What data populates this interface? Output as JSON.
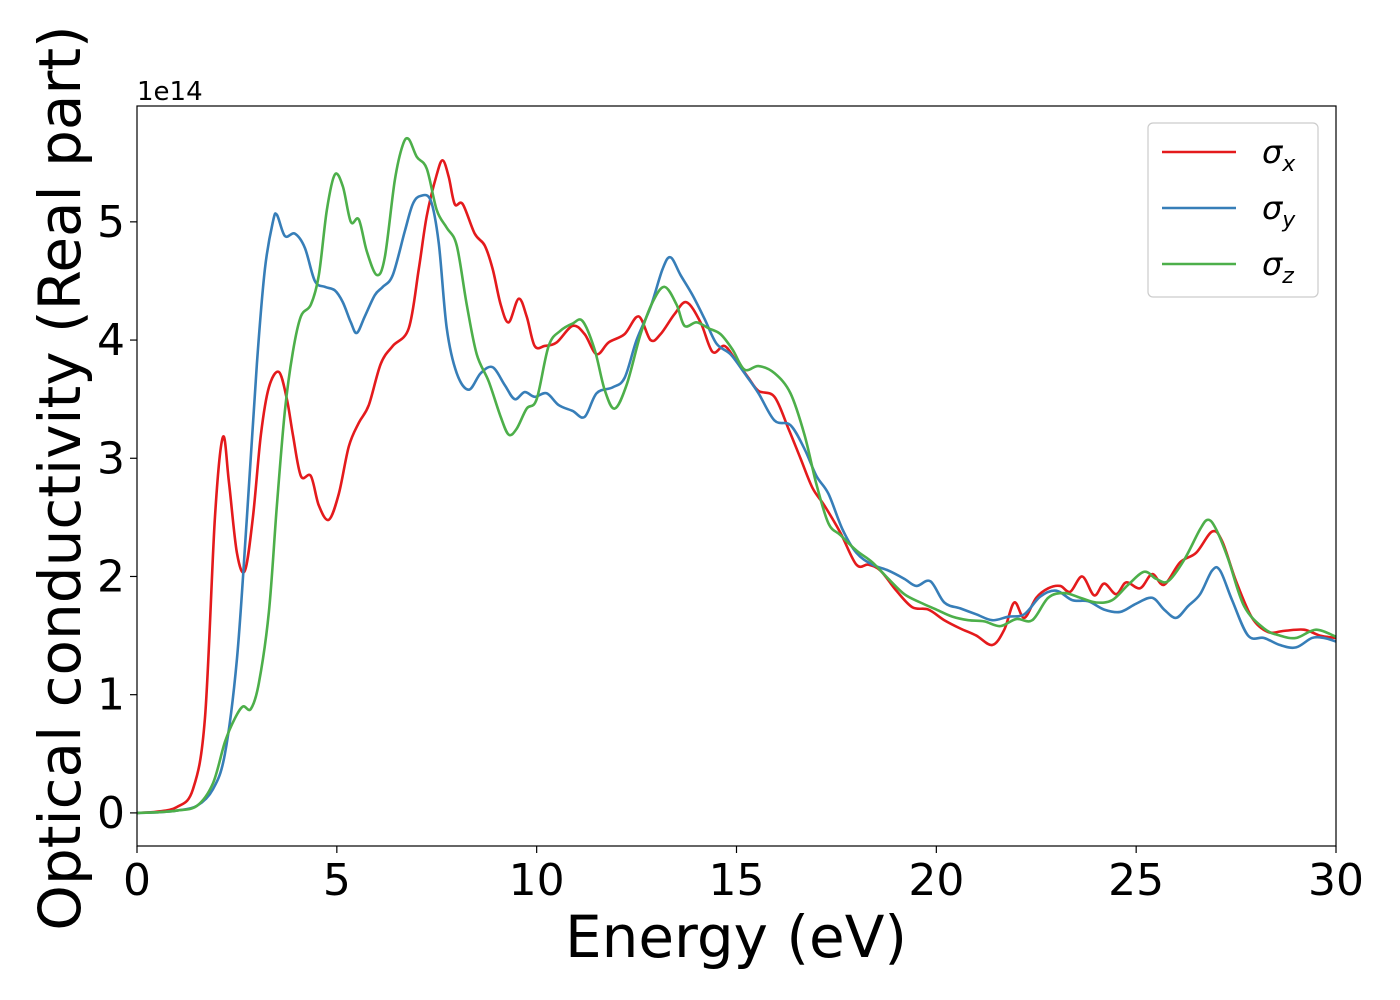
{
  "chart_data": {
    "type": "line",
    "xlabel": "Energy (eV)",
    "ylabel": "Optical conductivity (Real part)",
    "offset_text": "1e14",
    "scale": 100000000000000.0,
    "xlim": [
      0,
      30
    ],
    "ylim": [
      -0.28,
      5.98
    ],
    "x_ticks": [
      0,
      5,
      10,
      15,
      20,
      25,
      30
    ],
    "y_ticks": [
      0,
      1,
      2,
      3,
      4,
      5
    ],
    "grid": false,
    "legend_position": "top-right",
    "series": [
      {
        "name": "σx",
        "color": "#e41a1c",
        "points": [
          [
            0,
            0
          ],
          [
            0.5,
            0.01
          ],
          [
            1,
            0.05
          ],
          [
            1.4,
            0.2
          ],
          [
            1.7,
            0.8
          ],
          [
            1.95,
            2.5
          ],
          [
            2.15,
            3.18
          ],
          [
            2.3,
            2.8
          ],
          [
            2.5,
            2.2
          ],
          [
            2.7,
            2.05
          ],
          [
            2.9,
            2.5
          ],
          [
            3.1,
            3.2
          ],
          [
            3.3,
            3.6
          ],
          [
            3.55,
            3.73
          ],
          [
            3.75,
            3.5
          ],
          [
            3.9,
            3.2
          ],
          [
            4.1,
            2.85
          ],
          [
            4.35,
            2.85
          ],
          [
            4.55,
            2.6
          ],
          [
            4.8,
            2.48
          ],
          [
            5.05,
            2.7
          ],
          [
            5.3,
            3.1
          ],
          [
            5.55,
            3.3
          ],
          [
            5.8,
            3.45
          ],
          [
            6.1,
            3.8
          ],
          [
            6.4,
            3.95
          ],
          [
            6.8,
            4.1
          ],
          [
            7.05,
            4.6
          ],
          [
            7.25,
            5.05
          ],
          [
            7.5,
            5.4
          ],
          [
            7.65,
            5.52
          ],
          [
            7.8,
            5.38
          ],
          [
            7.95,
            5.15
          ],
          [
            8.15,
            5.15
          ],
          [
            8.45,
            4.9
          ],
          [
            8.7,
            4.8
          ],
          [
            8.9,
            4.6
          ],
          [
            9.1,
            4.3
          ],
          [
            9.3,
            4.15
          ],
          [
            9.55,
            4.35
          ],
          [
            9.75,
            4.2
          ],
          [
            9.95,
            3.95
          ],
          [
            10.2,
            3.95
          ],
          [
            10.5,
            3.98
          ],
          [
            10.9,
            4.12
          ],
          [
            11.2,
            4.05
          ],
          [
            11.5,
            3.88
          ],
          [
            11.8,
            3.98
          ],
          [
            12.2,
            4.05
          ],
          [
            12.55,
            4.2
          ],
          [
            12.85,
            4.0
          ],
          [
            13.1,
            4.05
          ],
          [
            13.45,
            4.22
          ],
          [
            13.75,
            4.32
          ],
          [
            14.1,
            4.15
          ],
          [
            14.4,
            3.9
          ],
          [
            14.7,
            3.95
          ],
          [
            15.0,
            3.82
          ],
          [
            15.3,
            3.68
          ],
          [
            15.55,
            3.57
          ],
          [
            15.95,
            3.52
          ],
          [
            16.3,
            3.25
          ],
          [
            16.6,
            3.0
          ],
          [
            16.9,
            2.75
          ],
          [
            17.2,
            2.6
          ],
          [
            17.6,
            2.37
          ],
          [
            18.0,
            2.1
          ],
          [
            18.3,
            2.1
          ],
          [
            18.6,
            2.05
          ],
          [
            19.0,
            1.88
          ],
          [
            19.4,
            1.74
          ],
          [
            19.8,
            1.72
          ],
          [
            20.2,
            1.63
          ],
          [
            20.6,
            1.56
          ],
          [
            21.0,
            1.5
          ],
          [
            21.4,
            1.42
          ],
          [
            21.7,
            1.55
          ],
          [
            21.95,
            1.78
          ],
          [
            22.2,
            1.65
          ],
          [
            22.5,
            1.82
          ],
          [
            22.8,
            1.9
          ],
          [
            23.1,
            1.92
          ],
          [
            23.35,
            1.87
          ],
          [
            23.65,
            2.0
          ],
          [
            23.95,
            1.84
          ],
          [
            24.2,
            1.94
          ],
          [
            24.5,
            1.85
          ],
          [
            24.75,
            1.95
          ],
          [
            25.1,
            1.9
          ],
          [
            25.4,
            2.02
          ],
          [
            25.7,
            1.93
          ],
          [
            26.1,
            2.12
          ],
          [
            26.5,
            2.2
          ],
          [
            26.9,
            2.38
          ],
          [
            27.15,
            2.3
          ],
          [
            27.5,
            1.96
          ],
          [
            27.9,
            1.65
          ],
          [
            28.3,
            1.53
          ],
          [
            28.7,
            1.54
          ],
          [
            29.2,
            1.55
          ],
          [
            29.6,
            1.5
          ],
          [
            30,
            1.48
          ]
        ]
      },
      {
        "name": "σy",
        "color": "#377eb8",
        "points": [
          [
            0,
            0
          ],
          [
            0.5,
            0.005
          ],
          [
            1,
            0.02
          ],
          [
            1.5,
            0.06
          ],
          [
            1.9,
            0.2
          ],
          [
            2.2,
            0.5
          ],
          [
            2.5,
            1.3
          ],
          [
            2.75,
            2.5
          ],
          [
            3.0,
            3.8
          ],
          [
            3.2,
            4.6
          ],
          [
            3.4,
            5.0
          ],
          [
            3.5,
            5.06
          ],
          [
            3.7,
            4.88
          ],
          [
            3.95,
            4.9
          ],
          [
            4.2,
            4.78
          ],
          [
            4.45,
            4.5
          ],
          [
            4.7,
            4.45
          ],
          [
            4.95,
            4.42
          ],
          [
            5.15,
            4.32
          ],
          [
            5.35,
            4.15
          ],
          [
            5.5,
            4.06
          ],
          [
            5.7,
            4.2
          ],
          [
            5.95,
            4.38
          ],
          [
            6.15,
            4.45
          ],
          [
            6.4,
            4.55
          ],
          [
            6.7,
            4.92
          ],
          [
            6.9,
            5.15
          ],
          [
            7.1,
            5.22
          ],
          [
            7.35,
            5.18
          ],
          [
            7.55,
            4.82
          ],
          [
            7.75,
            4.1
          ],
          [
            8.0,
            3.72
          ],
          [
            8.3,
            3.58
          ],
          [
            8.6,
            3.72
          ],
          [
            8.9,
            3.77
          ],
          [
            9.2,
            3.62
          ],
          [
            9.45,
            3.5
          ],
          [
            9.7,
            3.56
          ],
          [
            9.95,
            3.52
          ],
          [
            10.25,
            3.55
          ],
          [
            10.55,
            3.45
          ],
          [
            10.9,
            3.4
          ],
          [
            11.2,
            3.35
          ],
          [
            11.5,
            3.55
          ],
          [
            11.9,
            3.6
          ],
          [
            12.2,
            3.68
          ],
          [
            12.5,
            4.0
          ],
          [
            12.85,
            4.28
          ],
          [
            13.15,
            4.6
          ],
          [
            13.35,
            4.7
          ],
          [
            13.6,
            4.55
          ],
          [
            13.9,
            4.38
          ],
          [
            14.2,
            4.18
          ],
          [
            14.5,
            3.97
          ],
          [
            14.85,
            3.88
          ],
          [
            15.2,
            3.72
          ],
          [
            15.55,
            3.55
          ],
          [
            15.95,
            3.32
          ],
          [
            16.35,
            3.28
          ],
          [
            16.7,
            3.08
          ],
          [
            17.0,
            2.85
          ],
          [
            17.3,
            2.7
          ],
          [
            17.65,
            2.4
          ],
          [
            18.0,
            2.2
          ],
          [
            18.4,
            2.1
          ],
          [
            18.8,
            2.05
          ],
          [
            19.2,
            1.98
          ],
          [
            19.5,
            1.92
          ],
          [
            19.85,
            1.96
          ],
          [
            20.2,
            1.78
          ],
          [
            20.6,
            1.73
          ],
          [
            21.0,
            1.68
          ],
          [
            21.4,
            1.63
          ],
          [
            21.8,
            1.66
          ],
          [
            22.2,
            1.68
          ],
          [
            22.6,
            1.83
          ],
          [
            23.0,
            1.88
          ],
          [
            23.4,
            1.8
          ],
          [
            23.8,
            1.79
          ],
          [
            24.2,
            1.72
          ],
          [
            24.6,
            1.7
          ],
          [
            25.0,
            1.77
          ],
          [
            25.4,
            1.82
          ],
          [
            25.7,
            1.72
          ],
          [
            26.0,
            1.65
          ],
          [
            26.3,
            1.75
          ],
          [
            26.6,
            1.85
          ],
          [
            26.9,
            2.05
          ],
          [
            27.1,
            2.05
          ],
          [
            27.4,
            1.8
          ],
          [
            27.8,
            1.5
          ],
          [
            28.2,
            1.48
          ],
          [
            28.6,
            1.42
          ],
          [
            29.0,
            1.4
          ],
          [
            29.4,
            1.48
          ],
          [
            29.7,
            1.48
          ],
          [
            30,
            1.45
          ]
        ]
      },
      {
        "name": "σz",
        "color": "#4daf4a",
        "points": [
          [
            0,
            0
          ],
          [
            0.5,
            0.005
          ],
          [
            1,
            0.02
          ],
          [
            1.5,
            0.06
          ],
          [
            1.9,
            0.25
          ],
          [
            2.2,
            0.6
          ],
          [
            2.45,
            0.8
          ],
          [
            2.65,
            0.9
          ],
          [
            2.85,
            0.88
          ],
          [
            3.05,
            1.1
          ],
          [
            3.3,
            1.7
          ],
          [
            3.5,
            2.6
          ],
          [
            3.7,
            3.4
          ],
          [
            3.9,
            3.9
          ],
          [
            4.1,
            4.2
          ],
          [
            4.35,
            4.3
          ],
          [
            4.55,
            4.55
          ],
          [
            4.75,
            5.1
          ],
          [
            4.95,
            5.4
          ],
          [
            5.15,
            5.3
          ],
          [
            5.35,
            5.0
          ],
          [
            5.55,
            5.02
          ],
          [
            5.75,
            4.75
          ],
          [
            6.0,
            4.55
          ],
          [
            6.2,
            4.7
          ],
          [
            6.45,
            5.35
          ],
          [
            6.65,
            5.65
          ],
          [
            6.8,
            5.7
          ],
          [
            7.0,
            5.55
          ],
          [
            7.25,
            5.45
          ],
          [
            7.5,
            5.1
          ],
          [
            7.75,
            4.95
          ],
          [
            8.0,
            4.8
          ],
          [
            8.25,
            4.3
          ],
          [
            8.5,
            3.88
          ],
          [
            8.8,
            3.65
          ],
          [
            9.1,
            3.35
          ],
          [
            9.3,
            3.2
          ],
          [
            9.5,
            3.25
          ],
          [
            9.75,
            3.42
          ],
          [
            10.0,
            3.5
          ],
          [
            10.3,
            3.95
          ],
          [
            10.6,
            4.08
          ],
          [
            10.9,
            4.14
          ],
          [
            11.15,
            4.16
          ],
          [
            11.45,
            3.92
          ],
          [
            11.7,
            3.58
          ],
          [
            11.95,
            3.42
          ],
          [
            12.25,
            3.62
          ],
          [
            12.6,
            4.05
          ],
          [
            12.9,
            4.32
          ],
          [
            13.2,
            4.45
          ],
          [
            13.5,
            4.3
          ],
          [
            13.7,
            4.12
          ],
          [
            14.0,
            4.15
          ],
          [
            14.3,
            4.1
          ],
          [
            14.6,
            4.05
          ],
          [
            14.9,
            3.92
          ],
          [
            15.2,
            3.75
          ],
          [
            15.55,
            3.78
          ],
          [
            15.95,
            3.72
          ],
          [
            16.35,
            3.55
          ],
          [
            16.7,
            3.2
          ],
          [
            17.0,
            2.78
          ],
          [
            17.3,
            2.45
          ],
          [
            17.6,
            2.35
          ],
          [
            18.0,
            2.22
          ],
          [
            18.4,
            2.12
          ],
          [
            18.8,
            1.98
          ],
          [
            19.2,
            1.85
          ],
          [
            19.6,
            1.78
          ],
          [
            20.0,
            1.72
          ],
          [
            20.4,
            1.66
          ],
          [
            20.8,
            1.63
          ],
          [
            21.2,
            1.62
          ],
          [
            21.6,
            1.58
          ],
          [
            22.0,
            1.64
          ],
          [
            22.4,
            1.63
          ],
          [
            22.8,
            1.82
          ],
          [
            23.2,
            1.86
          ],
          [
            23.6,
            1.82
          ],
          [
            24.0,
            1.78
          ],
          [
            24.4,
            1.8
          ],
          [
            24.8,
            1.93
          ],
          [
            25.2,
            2.04
          ],
          [
            25.5,
            1.98
          ],
          [
            25.8,
            1.96
          ],
          [
            26.2,
            2.14
          ],
          [
            26.6,
            2.4
          ],
          [
            26.8,
            2.48
          ],
          [
            27.0,
            2.4
          ],
          [
            27.3,
            2.15
          ],
          [
            27.7,
            1.75
          ],
          [
            28.2,
            1.56
          ],
          [
            28.6,
            1.5
          ],
          [
            29.0,
            1.48
          ],
          [
            29.5,
            1.55
          ],
          [
            30,
            1.49
          ]
        ]
      }
    ]
  }
}
